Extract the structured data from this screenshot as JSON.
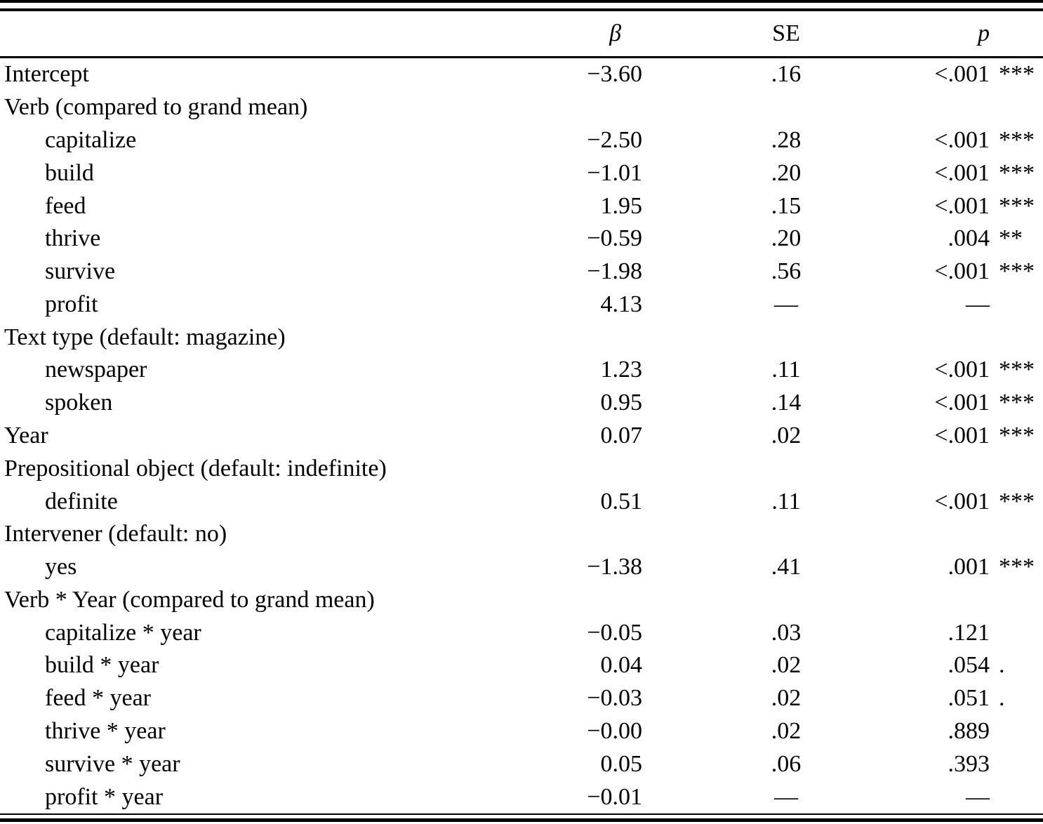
{
  "colors": {
    "text": "#000000",
    "background": "#ffffff",
    "rule": "#000000"
  },
  "table": {
    "header": {
      "beta": "β",
      "se": "SE",
      "p": "p"
    },
    "rows": [
      {
        "label": "Intercept",
        "indent": false,
        "beta": "−3.60",
        "se": ".16",
        "p": "<.001",
        "sig": "***"
      },
      {
        "label": "Verb (compared to grand mean)",
        "indent": false,
        "beta": "",
        "se": "",
        "p": "",
        "sig": ""
      },
      {
        "label": "capitalize",
        "indent": true,
        "beta": "−2.50",
        "se": ".28",
        "p": "<.001",
        "sig": "***"
      },
      {
        "label": "build",
        "indent": true,
        "beta": "−1.01",
        "se": ".20",
        "p": "<.001",
        "sig": "***"
      },
      {
        "label": "feed",
        "indent": true,
        "beta": "1.95",
        "se": ".15",
        "p": "<.001",
        "sig": "***"
      },
      {
        "label": "thrive",
        "indent": true,
        "beta": "−0.59",
        "se": ".20",
        "p": ".004",
        "sig": "**"
      },
      {
        "label": "survive",
        "indent": true,
        "beta": "−1.98",
        "se": ".56",
        "p": "<.001",
        "sig": "***"
      },
      {
        "label": "profit",
        "indent": true,
        "beta": "4.13",
        "se": "—",
        "p": "—",
        "sig": ""
      },
      {
        "label": "Text type (default: magazine)",
        "indent": false,
        "beta": "",
        "se": "",
        "p": "",
        "sig": ""
      },
      {
        "label": "newspaper",
        "indent": true,
        "beta": "1.23",
        "se": ".11",
        "p": "<.001",
        "sig": "***"
      },
      {
        "label": "spoken",
        "indent": true,
        "beta": "0.95",
        "se": ".14",
        "p": "<.001",
        "sig": "***"
      },
      {
        "label": "Year",
        "indent": false,
        "beta": "0.07",
        "se": ".02",
        "p": "<.001",
        "sig": "***"
      },
      {
        "label": "Prepositional object (default: indefinite)",
        "indent": false,
        "beta": "",
        "se": "",
        "p": "",
        "sig": ""
      },
      {
        "label": "definite",
        "indent": true,
        "beta": "0.51",
        "se": ".11",
        "p": "<.001",
        "sig": "***"
      },
      {
        "label": "Intervener (default: no)",
        "indent": false,
        "beta": "",
        "se": "",
        "p": "",
        "sig": ""
      },
      {
        "label": "yes",
        "indent": true,
        "beta": "−1.38",
        "se": ".41",
        "p": ".001",
        "sig": "***"
      },
      {
        "label": "Verb * Year (compared to grand mean)",
        "indent": false,
        "beta": "",
        "se": "",
        "p": "",
        "sig": ""
      },
      {
        "label": "capitalize * year",
        "indent": true,
        "beta": "−0.05",
        "se": ".03",
        "p": ".121",
        "sig": ""
      },
      {
        "label": "build * year",
        "indent": true,
        "beta": "0.04",
        "se": ".02",
        "p": ".054",
        "sig": "."
      },
      {
        "label": "feed * year",
        "indent": true,
        "beta": "−0.03",
        "se": ".02",
        "p": ".051",
        "sig": "."
      },
      {
        "label": "thrive * year",
        "indent": true,
        "beta": "−0.00",
        "se": ".02",
        "p": ".889",
        "sig": ""
      },
      {
        "label": "survive * year",
        "indent": true,
        "beta": "0.05",
        "se": ".06",
        "p": ".393",
        "sig": ""
      },
      {
        "label": "profit * year",
        "indent": true,
        "beta": "−0.01",
        "se": "—",
        "p": "—",
        "sig": ""
      }
    ]
  },
  "chart_data": {
    "type": "table",
    "title": "",
    "columns": [
      "",
      "β",
      "SE",
      "p"
    ],
    "rows_note": "regression coefficients table; see table.rows for full data"
  }
}
